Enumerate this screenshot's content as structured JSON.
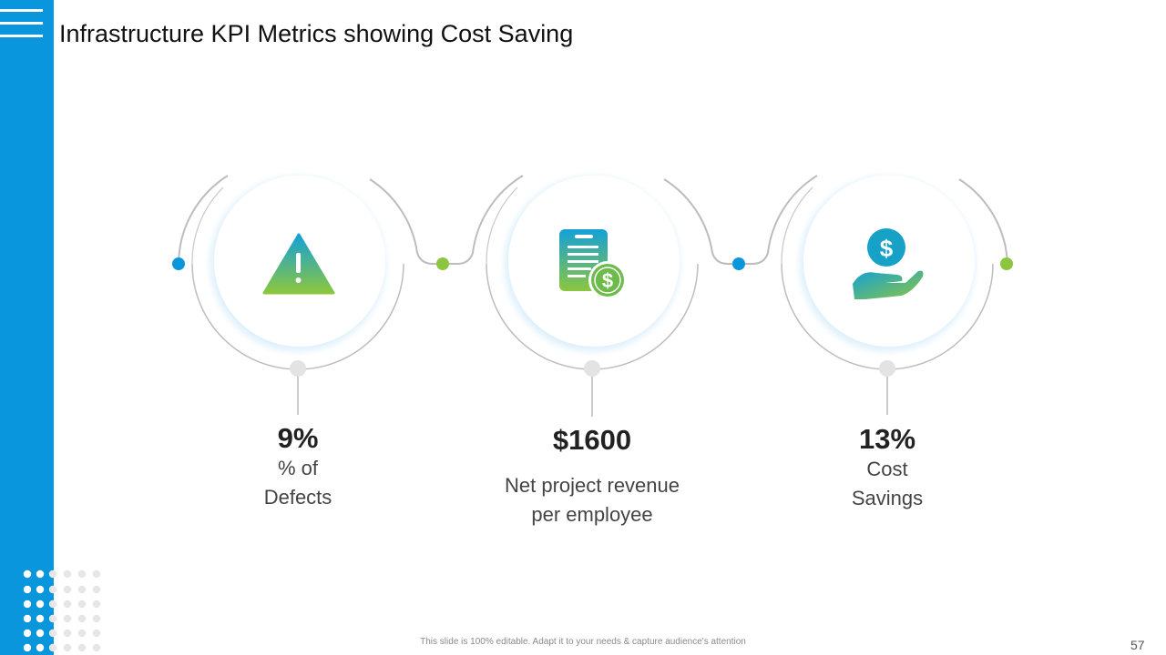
{
  "slide": {
    "title": "Infrastructure KPI Metrics showing Cost Saving",
    "footer": "This slide is 100% editable. Adapt it to your needs & capture audience's attention",
    "page_number": "57"
  },
  "kpis": [
    {
      "value": "9%",
      "label_line1": "% of",
      "label_line2": "Defects",
      "icon": "warning-triangle-icon"
    },
    {
      "value": "$1600",
      "label_line1": "Net project revenue",
      "label_line2": "per employee",
      "icon": "invoice-dollar-icon"
    },
    {
      "value": "13%",
      "label_line1": "Cost",
      "label_line2": "Savings",
      "icon": "hand-dollar-coin-icon"
    }
  ],
  "colors": {
    "sidebar": "#0a96dc",
    "accent_blue": "#0a96dc",
    "accent_green": "#8cc63e",
    "ring": "#bdbdbd"
  }
}
